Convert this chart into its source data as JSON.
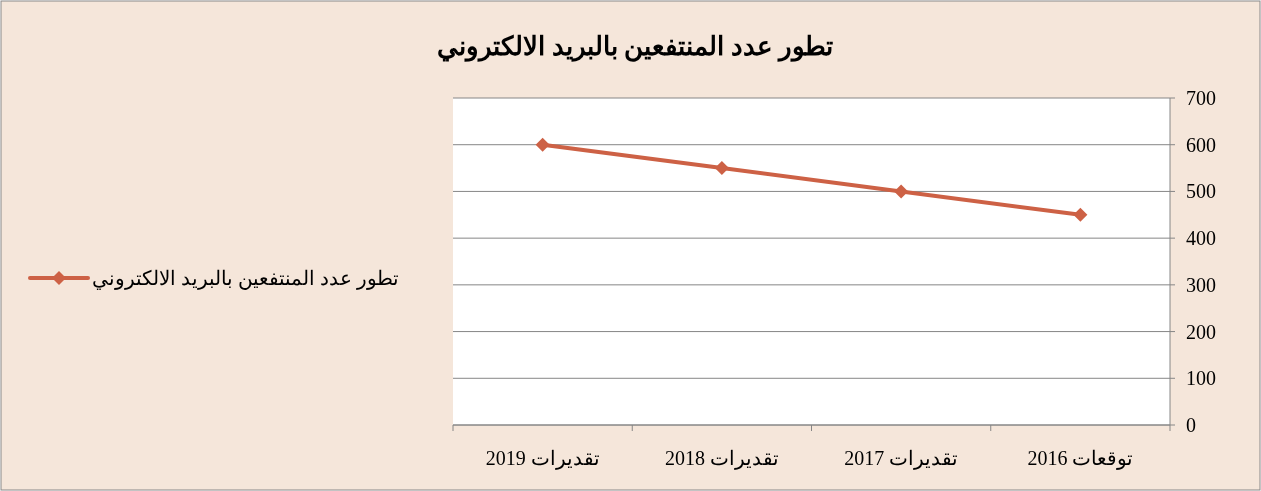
{
  "chart_data": {
    "type": "line",
    "title": "تطور عدد المنتفعين بالبريد الالكتروني",
    "categories": [
      "تقديرات 2019",
      "تقديرات 2018",
      "تقديرات 2017",
      "توقعات 2016"
    ],
    "series": [
      {
        "name": "تطور عدد المنتفعين بالبريد الالكتروني",
        "color": "#cd6145",
        "values": [
          600,
          550,
          500,
          450
        ]
      }
    ],
    "ylim": [
      0,
      700
    ],
    "yticks": [
      0,
      100,
      200,
      300,
      400,
      500,
      600,
      700
    ],
    "grid": "y",
    "legend": "left",
    "marker": "diamond",
    "line_style": "solid"
  }
}
